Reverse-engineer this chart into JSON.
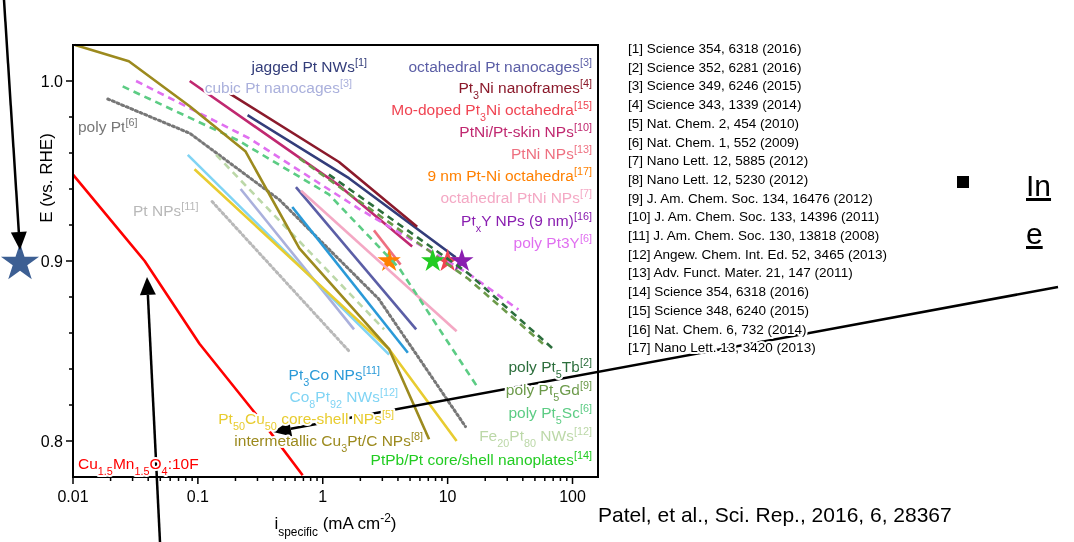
{
  "chart_data": {
    "type": "line",
    "xlabel": "i$_{specific}$ (mA cm$^{-2}$)",
    "ylabel": "E (vs. RHE)",
    "log": "x",
    "xlim": [
      0.01,
      160
    ],
    "ylim": [
      0.78,
      1.02
    ],
    "xticks": [
      0.01,
      {
        "value": 0.02,
        "label": null
      },
      {
        "value": 0.03,
        "label": null
      },
      {
        "value": 0.04,
        "label": null
      },
      {
        "value": 0.05,
        "label": null
      },
      {
        "value": 0.06,
        "label": null
      },
      {
        "value": 0.07,
        "label": null
      },
      {
        "value": 0.08,
        "label": null
      },
      {
        "value": 0.09,
        "label": null
      },
      0.1,
      {
        "value": 0.2,
        "label": null
      },
      {
        "value": 0.3,
        "label": null
      },
      {
        "value": 0.4,
        "label": null
      },
      {
        "value": 0.5,
        "label": null
      },
      {
        "value": 0.6,
        "label": null
      },
      {
        "value": 0.7,
        "label": null
      },
      {
        "value": 0.8,
        "label": null
      },
      {
        "value": 0.9,
        "label": null
      },
      1,
      {
        "value": 2,
        "label": null
      },
      {
        "value": 3,
        "label": null
      },
      {
        "value": 4,
        "label": null
      },
      {
        "value": 5,
        "label": null
      },
      {
        "value": 6,
        "label": null
      },
      {
        "value": 7,
        "label": null
      },
      {
        "value": 8,
        "label": null
      },
      {
        "value": 9,
        "label": null
      },
      10,
      {
        "value": 20,
        "label": null
      },
      {
        "value": 30,
        "label": null
      },
      {
        "value": 40,
        "label": null
      },
      {
        "value": 50,
        "label": null
      },
      {
        "value": 60,
        "label": null
      },
      {
        "value": 70,
        "label": null
      },
      {
        "value": 80,
        "label": null
      },
      {
        "value": 90,
        "label": null
      },
      100
    ],
    "yticks": [
      0.8,
      {
        "value": 0.82,
        "label": null
      },
      {
        "value": 0.84,
        "label": null
      },
      {
        "value": 0.86,
        "label": null
      },
      {
        "value": 0.88,
        "label": null
      },
      0.9,
      {
        "value": 0.92,
        "label": null
      },
      {
        "value": 0.94,
        "label": null
      },
      {
        "value": 0.96,
        "label": null
      },
      {
        "value": 0.98,
        "label": null
      },
      {
        "value": 1,
        "label": "1.0"
      }
    ],
    "series": [
      {
        "name": "jagged Pt NWs$^{[1]}$",
        "color": "#333d7a",
        "line_style": "solid",
        "x": [
          0.25,
          1.62,
          11.6
        ],
        "values": [
          0.981,
          0.946,
          0.902
        ]
      },
      {
        "name": "octahedral Pt nanocages$^{[3]}$",
        "color": "#5b5ea6",
        "line_style": "solid",
        "x": [
          0.61,
          5.6
        ],
        "values": [
          0.941,
          0.862
        ]
      },
      {
        "name": "cubic Pt nanocages$^{[3]}$",
        "color": "#aab0dc",
        "line_style": "solid",
        "x": [
          0.22,
          1.78
        ],
        "values": [
          0.94,
          0.862
        ]
      },
      {
        "name": "Pt$_{3}$Ni nanoframes$^{[4]}$",
        "color": "#8b1a2b",
        "line_style": "solid",
        "x": [
          0.18,
          1.35,
          5.7
        ],
        "values": [
          0.993,
          0.955,
          0.919
        ]
      },
      {
        "name": "Mo-doped Pt$_{3}$Ni octahedra$^{[15]}$",
        "type": "scatter",
        "marker": "star",
        "color": "#f04452",
        "x": [
          10
        ],
        "values": [
          0.9
        ]
      },
      {
        "name": "PtNi/Pt-skin NPs$^{[10]}$",
        "color": "#c02870",
        "line_style": "solid",
        "x": [
          0.086,
          1.35,
          5.2
        ],
        "values": [
          1.0,
          0.942,
          0.908
        ]
      },
      {
        "name": "PtNi NPs$^{[13]}$",
        "color": "#ee7080",
        "line_style": "solid",
        "x": [
          2.57,
          4.2
        ],
        "values": [
          0.917,
          0.898
        ]
      },
      {
        "name": "9 nm Pt-Ni octahedra$^{[17]}$",
        "type": "scatter",
        "marker": "star",
        "color": "#ff8000",
        "x": [
          3.4
        ],
        "values": [
          0.9
        ]
      },
      {
        "name": "octahedral PtNi NPs$^{[7]}$",
        "color": "#f4a8c4",
        "line_style": "solid",
        "x": [
          0.67,
          11.8
        ],
        "values": [
          0.939,
          0.861
        ]
      },
      {
        "name": "Pt$_{x}$Y NPs (9 nm)$^{[16]}$",
        "type": "scatter",
        "marker": "star",
        "color": "#8a1eb0",
        "x": [
          13
        ],
        "values": [
          0.9
        ]
      },
      {
        "name": "poly Pt3Y$^{[6]}$",
        "color": "#e070f0",
        "line_style": "dashed",
        "x": [
          0.032,
          0.26,
          1.95,
          14.7,
          36.9
        ],
        "values": [
          1.0,
          0.968,
          0.929,
          0.893,
          0.873
        ]
      },
      {
        "name": "poly Pt$^{[6]}$",
        "color": "#777777",
        "line_style": "dotted",
        "x": [
          0.019,
          0.086,
          0.45,
          2.8,
          13.9
        ],
        "values": [
          0.99,
          0.971,
          0.934,
          0.879,
          0.808
        ]
      },
      {
        "name": "Pt NPs$^{[11]}$",
        "color": "#b8b8b8",
        "line_style": "dotted",
        "x": [
          0.13,
          1.62
        ],
        "values": [
          0.933,
          0.85
        ]
      },
      {
        "name": "poly Pt$_{5}$Tb$^{[2]}$",
        "color": "#2c6e3c",
        "line_style": "dashed",
        "x": [
          1.12,
          14.7,
          73
        ],
        "values": [
          0.948,
          0.893,
          0.85
        ]
      },
      {
        "name": "poly Pt$_{5}$Gd$^{[9]}$",
        "color": "#6c9a4a",
        "line_style": "dashed",
        "x": [
          0.65,
          14.7,
          58
        ],
        "values": [
          0.957,
          0.89,
          0.854
        ]
      },
      {
        "name": "poly Pt$_{5}$Sc$^{[6]}$",
        "color": "#5ccc84",
        "line_style": "dashed",
        "x": [
          0.025,
          0.21,
          1.12,
          4.1,
          17.7
        ],
        "values": [
          0.997,
          0.967,
          0.937,
          0.896,
          0.829
        ]
      },
      {
        "name": "Fe$_{20}$Pt$_{80}$ NWs$^{[12]}$",
        "color": "#bcd8a8",
        "line_style": "dashed",
        "x": [
          0.14,
          3.1
        ],
        "values": [
          0.959,
          0.862
        ]
      },
      {
        "name": "PtPb/Pt core/shell nanoplates$^{[14]}$",
        "type": "scatter",
        "marker": "star",
        "color": "#22cc22",
        "x": [
          7.6
        ],
        "values": [
          0.9
        ]
      },
      {
        "name": "Pt$_{3}$Co NPs$^{[11]}$",
        "color": "#2a9ad8",
        "line_style": "solid",
        "x": [
          0.57,
          4.8
        ],
        "values": [
          0.93,
          0.849
        ]
      },
      {
        "name": "Co$_{8}$Pt$_{92}$ NWs$^{[12]}$",
        "color": "#80d4f4",
        "line_style": "solid",
        "x": [
          0.083,
          3.4
        ],
        "values": [
          0.959,
          0.848
        ]
      },
      {
        "name": "Pt$_{50}$Cu$_{50}$ core-shell NPs$^{[5]}$",
        "color": "#e8cc30",
        "line_style": "solid",
        "x": [
          0.094,
          3.4,
          11.8
        ],
        "values": [
          0.951,
          0.851,
          0.8
        ]
      },
      {
        "name": "intermetallic Cu$_{3}$Pt/C NPs$^{[8]}$",
        "color": "#9c8a1e",
        "line_style": "solid",
        "x": [
          0.0104,
          0.028,
          0.086,
          0.24,
          0.65,
          3.4,
          7.1
        ],
        "values": [
          1.02,
          1.011,
          0.986,
          0.961,
          0.907,
          0.851,
          0.801
        ]
      },
      {
        "name": "Cu$_{1.5}$Mn$_{1.5}$O$_{4}$:10F",
        "color": "#ff0000",
        "line_style": "solid",
        "x": [
          0.01,
          0.0375,
          0.103,
          0.36,
          0.69
        ],
        "values": [
          0.948,
          0.9,
          0.854,
          0.807,
          0.781
        ]
      }
    ],
    "annotations": [
      "[1] Science 354, 6318 (2016)",
      "[2] Science 352, 6281 (2016)",
      "[3] Science 349, 6246 (2015)",
      "[4] Science 343, 1339 (2014)",
      "[5] Nat. Chem. 2, 454 (2010)",
      "[6] Nat. Chem. 1, 552 (2009)",
      "[7] Nano Lett. 12, 5885 (2012)",
      "[8] Nano Lett. 12, 5230 (2012)",
      "[9] J. Am. Chem. Soc. 134, 16476 (2012)",
      "[10] J. Am. Chem. Soc. 133, 14396 (2011)",
      "[11] J. Am. Chem. Soc. 130, 13818 (2008)",
      "[12] Angew. Chem. Int. Ed. 52, 3465 (2013)",
      "[13] Adv. Funct. Mater. 21, 147 (2011)",
      "[14] Science 354, 6318 (2016)",
      "[15] Science 348, 6240 (2015)",
      "[16] Nat. Chem. 6, 732 (2014)",
      "[17] Nano Lett. 13, 3420 (2013)",
      "Patel, et al., Sci. Rep., 2016, 6, 28367",
      "In",
      "e"
    ]
  }
}
